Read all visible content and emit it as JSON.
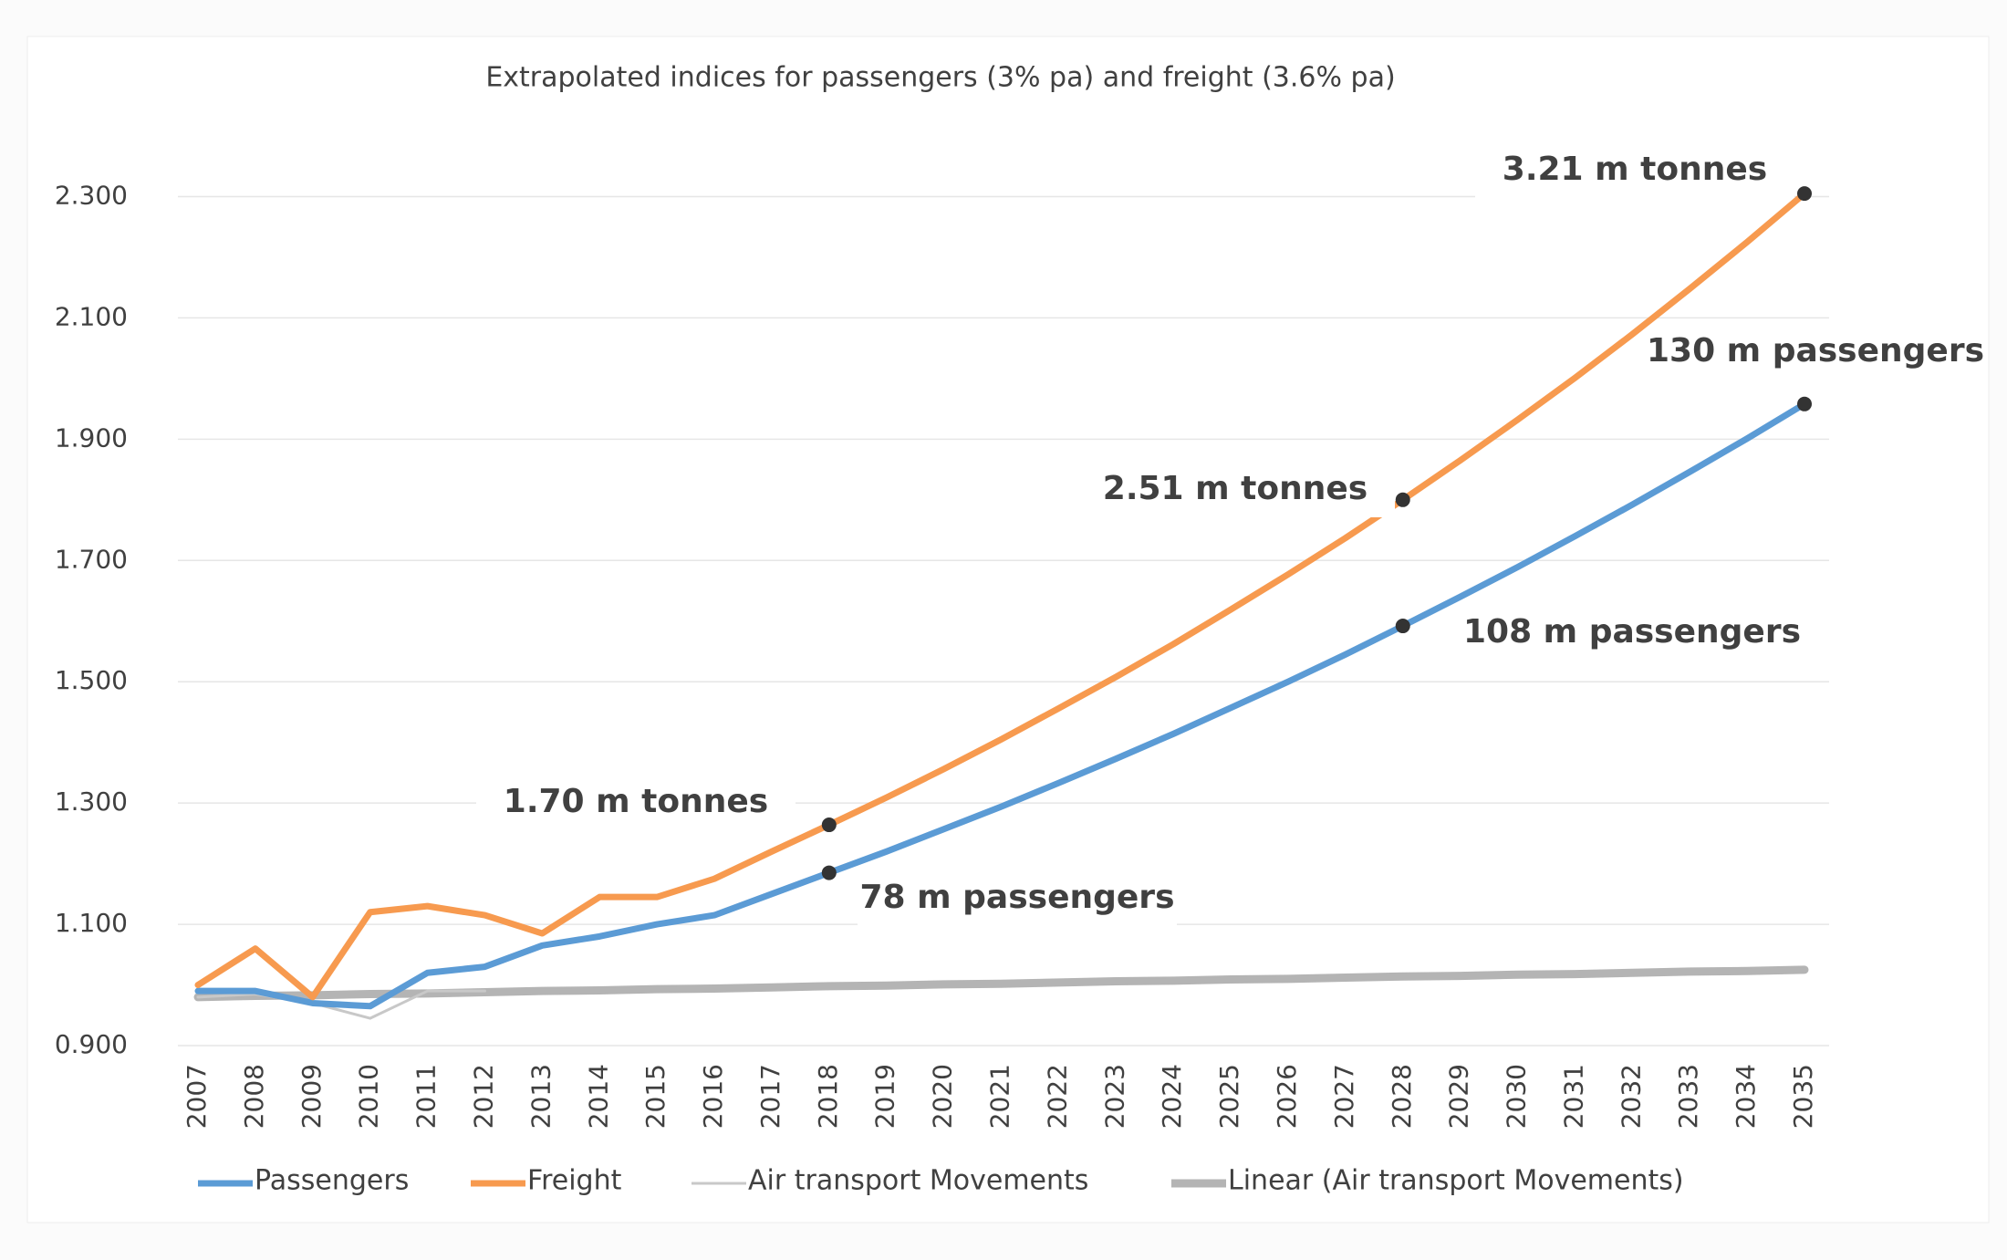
{
  "chart_data": {
    "type": "line",
    "title": "Extrapolated  indices for passengers (3% pa) and freight (3.6% pa)",
    "categories": [
      "2007",
      "2008",
      "2009",
      "2010",
      "2011",
      "2012",
      "2013",
      "2014",
      "2015",
      "2016",
      "2017",
      "2018",
      "2019",
      "2020",
      "2021",
      "2022",
      "2023",
      "2024",
      "2025",
      "2026",
      "2027",
      "2028",
      "2029",
      "2030",
      "2031",
      "2032",
      "2033",
      "2034",
      "2035"
    ],
    "series": [
      {
        "name": "Passengers",
        "color": "#5b9bd5",
        "width": 7,
        "values": [
          0.99,
          0.99,
          0.97,
          0.965,
          1.02,
          1.03,
          1.065,
          1.08,
          1.1,
          1.115,
          1.15,
          1.185,
          1.22,
          1.257,
          1.294,
          1.333,
          1.373,
          1.414,
          1.457,
          1.5,
          1.545,
          1.592,
          1.64,
          1.689,
          1.74,
          1.792,
          1.846,
          1.901,
          1.958
        ]
      },
      {
        "name": "Freight",
        "color": "#f79a4f",
        "width": 7,
        "values": [
          1.0,
          1.06,
          0.98,
          1.12,
          1.13,
          1.115,
          1.085,
          1.145,
          1.145,
          1.175,
          1.22,
          1.264,
          1.309,
          1.356,
          1.405,
          1.456,
          1.508,
          1.562,
          1.619,
          1.677,
          1.737,
          1.8,
          1.865,
          1.932,
          2.001,
          2.073,
          2.148,
          2.225,
          2.305
        ]
      },
      {
        "name": "Air transport Movements",
        "color": "#c8c8c8",
        "width": 3,
        "values": [
          0.98,
          0.985,
          0.97,
          0.945,
          0.99,
          0.99,
          null,
          null,
          null,
          null,
          null,
          null,
          null,
          null,
          null,
          null,
          null,
          null,
          null,
          null,
          null,
          null,
          null,
          null,
          null,
          null,
          null,
          null,
          null
        ]
      },
      {
        "name": "Linear (Air transport Movements)",
        "color": "#b4b4b4",
        "width": 9,
        "values": [
          0.98,
          0.982,
          0.983,
          0.985,
          0.986,
          0.988,
          0.99,
          0.991,
          0.993,
          0.994,
          0.996,
          0.998,
          0.999,
          1.001,
          1.002,
          1.004,
          1.006,
          1.007,
          1.009,
          1.01,
          1.012,
          1.014,
          1.015,
          1.017,
          1.018,
          1.02,
          1.022,
          1.023,
          1.025
        ]
      }
    ],
    "ylim": [
      0.9,
      2.4
    ],
    "yticks": [
      {
        "value": 0.9,
        "label": "0.900"
      },
      {
        "value": 1.1,
        "label": "1.100"
      },
      {
        "value": 1.3,
        "label": "1.300"
      },
      {
        "value": 1.5,
        "label": "1.500"
      },
      {
        "value": 1.7,
        "label": "1.700"
      },
      {
        "value": 1.9,
        "label": "1.900"
      },
      {
        "value": 2.1,
        "label": "2.100"
      },
      {
        "value": 2.3,
        "label": "2.300"
      }
    ],
    "grid": true,
    "legend": "bottom",
    "annotations": [
      "3.21 m tonnes",
      "130 m passengers",
      "2.51 m tonnes",
      "108 m passengers",
      "1.70 m tonnes",
      "78 m passengers"
    ]
  }
}
